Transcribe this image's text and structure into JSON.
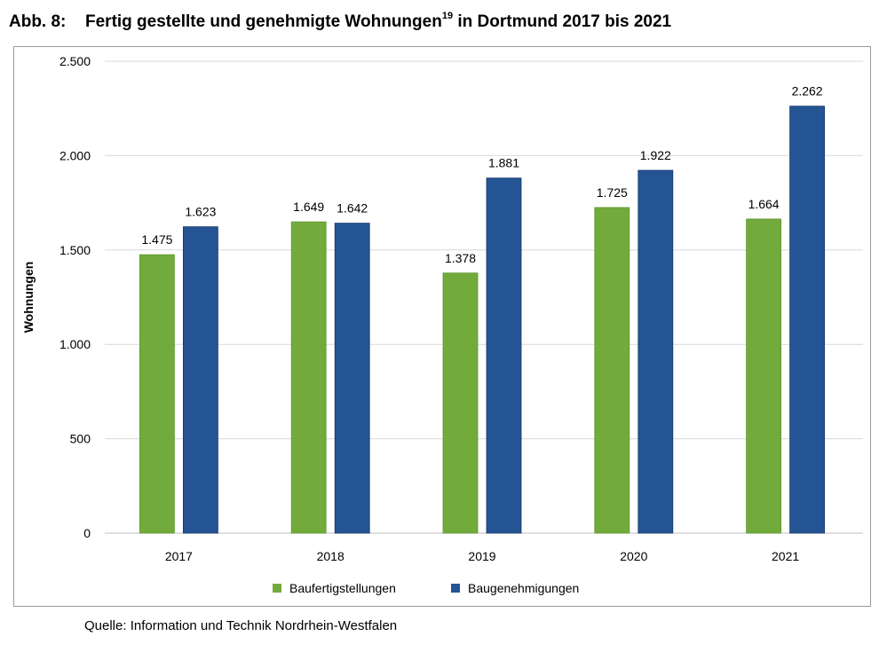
{
  "figure": {
    "label": "Abb. 8:",
    "title": "Fertig gestellte und genehmigte Wohnungen",
    "footnote": "19",
    "title_suffix": "in Dortmund 2017 bis 2021",
    "source": "Quelle: Information und Technik Nordrhein-Westfalen"
  },
  "colors": {
    "Baufertigstellungen": "#72ab3c",
    "Baugenehmigungen": "#245494",
    "grid": "#d9d9d9",
    "frame": "#9a9a9a"
  },
  "chart_data": {
    "type": "bar",
    "categories": [
      "2017",
      "2018",
      "2019",
      "2020",
      "2021"
    ],
    "series": [
      {
        "name": "Baufertigstellungen",
        "values": [
          1475,
          1649,
          1378,
          1725,
          1664
        ],
        "labels": [
          "1.475",
          "1.649",
          "1.378",
          "1.725",
          "1.664"
        ]
      },
      {
        "name": "Baugenehmigungen",
        "values": [
          1623,
          1642,
          1881,
          1922,
          2262
        ],
        "labels": [
          "1.623",
          "1.642",
          "1.881",
          "1.922",
          "2.262"
        ]
      }
    ],
    "ylabel": "Wohnungen",
    "xlabel": "",
    "ylim": [
      0,
      2500
    ],
    "yticks": [
      0,
      500,
      1000,
      1500,
      2000,
      2500
    ],
    "ytick_labels": [
      "0",
      "500",
      "1.000",
      "1.500",
      "2.000",
      "2.500"
    ],
    "grid": true,
    "legend": "bottom-center"
  }
}
